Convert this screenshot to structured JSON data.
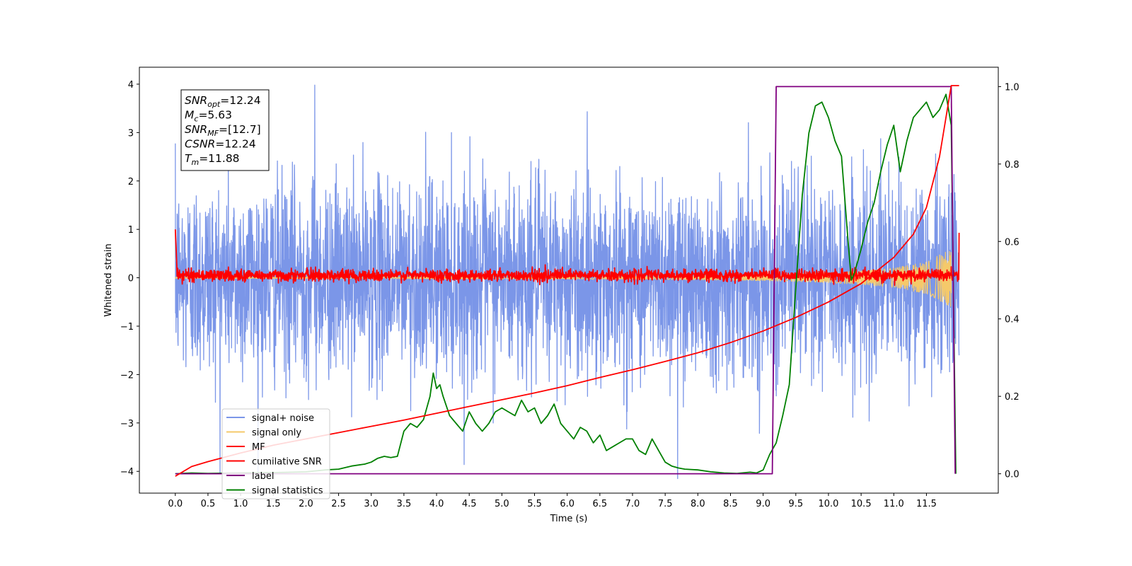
{
  "chart_data": {
    "type": "line",
    "xlabel": "Time (s)",
    "ylabel": "Whitened strain",
    "xlim": [
      -0.55,
      12.6
    ],
    "ylim": [
      -4.45,
      4.35
    ],
    "ylim_right": [
      -0.05,
      1.05
    ],
    "x_ticks": [
      "0.0",
      "0.5",
      "1.0",
      "1.5",
      "2.0",
      "2.5",
      "3.0",
      "3.5",
      "4.0",
      "4.5",
      "5.0",
      "5.5",
      "6.0",
      "6.5",
      "7.0",
      "7.5",
      "8.0",
      "8.5",
      "9.0",
      "9.5",
      "10.0",
      "10.5",
      "11.0",
      "11.5"
    ],
    "y_ticks_left": [
      "4",
      "3",
      "2",
      "1",
      "0",
      "−1",
      "−2",
      "−3",
      "−4"
    ],
    "y_ticks_right": [
      "1.0",
      "0.8",
      "0.6",
      "0.4",
      "0.2",
      "0.0"
    ],
    "grid": false,
    "legend_position": "lower-left",
    "annotation": {
      "lines": [
        {
          "sym": "SNR",
          "sub": "opt",
          "value": "=12.24"
        },
        {
          "sym": "M",
          "sub": "c",
          "value": "=5.63"
        },
        {
          "sym": "SNR",
          "sub": "MF",
          "value": "=[12.7]"
        },
        {
          "sym": "CSNR",
          "sub": "",
          "value": "=12.24"
        },
        {
          "sym": "T",
          "sub": "m",
          "value": "=11.88"
        }
      ]
    },
    "series": [
      {
        "name": "signal+ noise",
        "color": "#7b96e8",
        "axis": "left",
        "kind": "noise",
        "t_start": 0.0,
        "t_end": 12.0,
        "amplitude_sigma": 1.0,
        "extremes": [
          3.98,
          -4.15
        ]
      },
      {
        "name": "signal only",
        "color": "#f5c96a",
        "axis": "left",
        "kind": "chirp",
        "t_start": 0.0,
        "t_end": 11.88,
        "envelope_points": [
          [
            0.0,
            0.01
          ],
          [
            7.0,
            0.03
          ],
          [
            9.0,
            0.06
          ],
          [
            10.0,
            0.1
          ],
          [
            10.5,
            0.14
          ],
          [
            11.0,
            0.2
          ],
          [
            11.5,
            0.33
          ],
          [
            11.88,
            0.6
          ]
        ]
      },
      {
        "name": "MF",
        "color": "#ff0000",
        "axis": "left",
        "kind": "matched-filter",
        "t_start": 0.0,
        "t_end": 12.0,
        "baseline": 0.05,
        "spread": 0.06,
        "start_value": 1.0,
        "end_value": 0.93
      },
      {
        "name": "cumilative SNR",
        "color": "#ff0000",
        "axis": "left",
        "kind": "curve",
        "x": [
          0.0,
          0.25,
          0.5,
          1.0,
          1.5,
          2.0,
          2.5,
          3.0,
          3.5,
          4.0,
          4.5,
          5.0,
          5.5,
          6.0,
          6.5,
          7.0,
          7.5,
          8.0,
          8.5,
          9.0,
          9.5,
          10.0,
          10.5,
          11.0,
          11.3,
          11.5,
          11.7,
          11.88,
          12.0
        ],
        "y": [
          -4.1,
          -3.9,
          -3.8,
          -3.62,
          -3.46,
          -3.33,
          -3.2,
          -3.07,
          -2.94,
          -2.8,
          -2.66,
          -2.52,
          -2.38,
          -2.23,
          -2.06,
          -1.9,
          -1.73,
          -1.55,
          -1.34,
          -1.1,
          -0.82,
          -0.5,
          -0.12,
          0.42,
          0.9,
          1.45,
          2.5,
          3.97,
          3.97
        ]
      },
      {
        "name": "label",
        "color": "#800080",
        "axis": "right",
        "kind": "curve",
        "x": [
          0.0,
          9.14,
          9.2,
          11.88,
          11.94
        ],
        "y": [
          0.0,
          0.0,
          1.0,
          1.0,
          0.0
        ]
      },
      {
        "name": "signal statistics",
        "color": "#008000",
        "axis": "right",
        "kind": "curve",
        "x": [
          0.0,
          0.25,
          0.5,
          1.0,
          1.5,
          2.0,
          2.3,
          2.5,
          2.7,
          2.9,
          3.0,
          3.1,
          3.2,
          3.3,
          3.4,
          3.5,
          3.55,
          3.6,
          3.7,
          3.8,
          3.85,
          3.9,
          3.95,
          4.0,
          4.05,
          4.1,
          4.2,
          4.3,
          4.4,
          4.5,
          4.6,
          4.7,
          4.8,
          4.9,
          5.0,
          5.1,
          5.2,
          5.3,
          5.4,
          5.5,
          5.6,
          5.7,
          5.8,
          5.9,
          6.0,
          6.1,
          6.2,
          6.3,
          6.4,
          6.5,
          6.6,
          6.7,
          6.8,
          6.9,
          7.0,
          7.1,
          7.2,
          7.3,
          7.4,
          7.5,
          7.6,
          7.7,
          7.8,
          8.0,
          8.2,
          8.4,
          8.6,
          8.8,
          8.9,
          9.0,
          9.1,
          9.2,
          9.3,
          9.4,
          9.5,
          9.6,
          9.7,
          9.8,
          9.9,
          10.0,
          10.1,
          10.2,
          10.3,
          10.35,
          10.4,
          10.5,
          10.6,
          10.7,
          10.8,
          10.9,
          11.0,
          11.1,
          11.2,
          11.3,
          11.4,
          11.5,
          11.6,
          11.7,
          11.8,
          11.88,
          11.95
        ],
        "y": [
          0.0,
          0.002,
          0.001,
          0.002,
          0.003,
          0.005,
          0.01,
          0.012,
          0.02,
          0.025,
          0.03,
          0.04,
          0.045,
          0.042,
          0.045,
          0.11,
          0.12,
          0.13,
          0.12,
          0.14,
          0.17,
          0.2,
          0.26,
          0.22,
          0.23,
          0.2,
          0.15,
          0.13,
          0.11,
          0.16,
          0.13,
          0.11,
          0.13,
          0.16,
          0.17,
          0.16,
          0.15,
          0.19,
          0.16,
          0.17,
          0.13,
          0.15,
          0.18,
          0.13,
          0.11,
          0.09,
          0.12,
          0.11,
          0.08,
          0.1,
          0.06,
          0.07,
          0.08,
          0.09,
          0.09,
          0.06,
          0.05,
          0.09,
          0.06,
          0.03,
          0.02,
          0.015,
          0.012,
          0.01,
          0.005,
          0.002,
          0.001,
          0.004,
          0.002,
          0.01,
          0.05,
          0.08,
          0.15,
          0.23,
          0.48,
          0.72,
          0.88,
          0.95,
          0.96,
          0.92,
          0.86,
          0.82,
          0.6,
          0.5,
          0.52,
          0.58,
          0.65,
          0.7,
          0.78,
          0.85,
          0.9,
          0.78,
          0.86,
          0.92,
          0.94,
          0.96,
          0.92,
          0.94,
          0.98,
          0.9,
          0.0
        ]
      }
    ]
  }
}
